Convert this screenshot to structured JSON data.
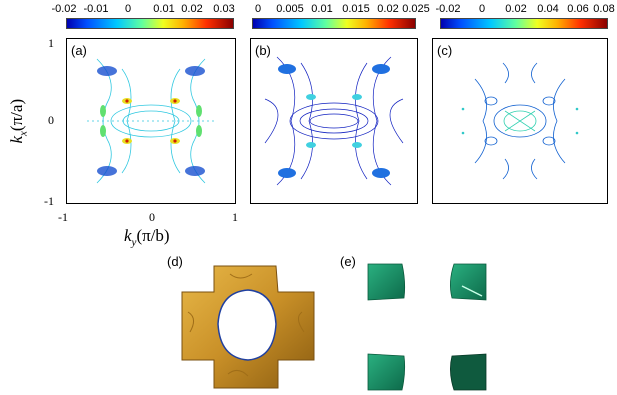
{
  "colorbars": [
    {
      "ticks": [
        "-0.02",
        "-0.01",
        "0",
        "0.01",
        "0.02",
        "0.03"
      ]
    },
    {
      "ticks": [
        "0",
        "0.005",
        "0.01",
        "0.015",
        "0.02",
        "0.025"
      ]
    },
    {
      "ticks": [
        "-0.02",
        "0",
        "0.02",
        "0.04",
        "0.06",
        "0.08"
      ]
    }
  ],
  "panels": {
    "a": {
      "label": "(a)"
    },
    "b": {
      "label": "(b)"
    },
    "c": {
      "label": "(c)"
    },
    "d": {
      "label": "(d)"
    },
    "e": {
      "label": "(e)"
    }
  },
  "axes": {
    "ylabel": "kx(π/a)",
    "ylabel_main": "k",
    "ylabel_sub": "x",
    "ylabel_rest": "(π/a)",
    "xlabel_main": "k",
    "xlabel_sub": "y",
    "xlabel_rest": "(π/b)",
    "yticks": [
      "1",
      "0",
      "-1"
    ],
    "xticks": [
      "-1",
      "0",
      "1"
    ]
  },
  "colors": {
    "contour_a": "#30c8e0",
    "contour_b": "#1020c0",
    "contour_c": "#1060d0",
    "fermi_gold": "#d4a030",
    "fermi_green": "#1f8f6a"
  }
}
